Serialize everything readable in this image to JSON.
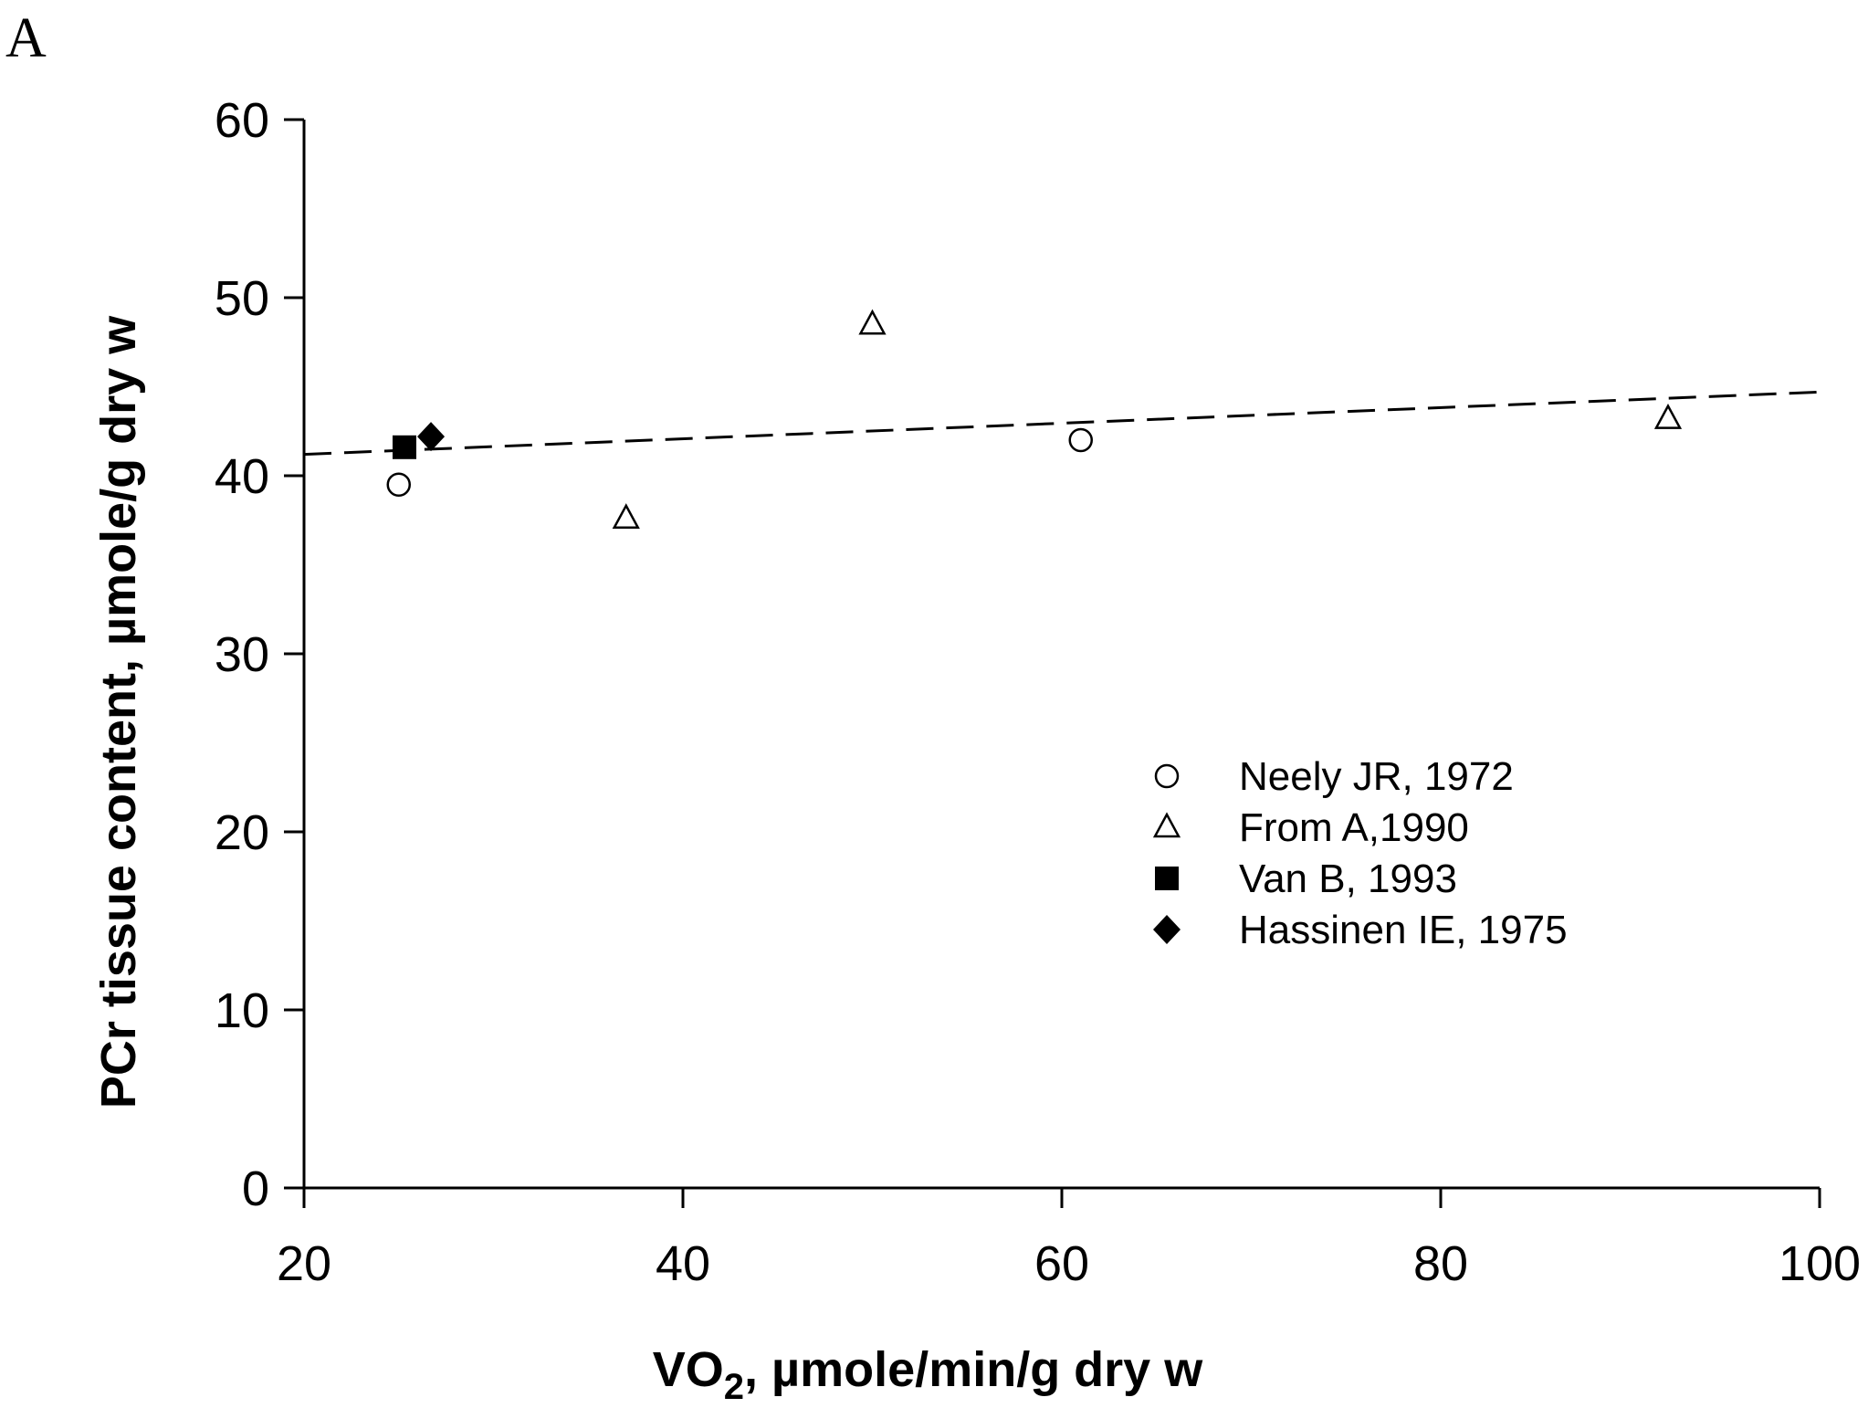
{
  "panel_label": "A",
  "chart_data": {
    "type": "scatter",
    "title": "",
    "xlabel_main": "VO",
    "xlabel_sub": "2",
    "xlabel_rest": ", µmole/min/g dry w",
    "ylabel": "PCr tissue content, µmole/g dry w",
    "xlim": [
      20,
      100
    ],
    "ylim": [
      0,
      60
    ],
    "x_ticks": [
      20,
      40,
      60,
      80,
      100
    ],
    "y_ticks": [
      0,
      10,
      20,
      30,
      40,
      50,
      60
    ],
    "grid": false,
    "legend_position": "center-right",
    "series": [
      {
        "name": "Neely JR, 1972",
        "marker": "circle-open",
        "points": [
          [
            25,
            39.5
          ],
          [
            61,
            42.0
          ]
        ]
      },
      {
        "name": "From A,1990",
        "marker": "triangle-open",
        "points": [
          [
            37,
            37.6
          ],
          [
            50,
            48.5
          ],
          [
            92,
            43.2
          ]
        ]
      },
      {
        "name": "Van B, 1993",
        "marker": "square-filled",
        "points": [
          [
            25.3,
            41.6
          ]
        ]
      },
      {
        "name": "Hassinen IE, 1975",
        "marker": "diamond-filled",
        "points": [
          [
            26.7,
            42.2
          ]
        ]
      }
    ],
    "trendline": {
      "style": "dashed",
      "from": [
        20,
        41.2
      ],
      "to": [
        100,
        44.7
      ]
    }
  }
}
